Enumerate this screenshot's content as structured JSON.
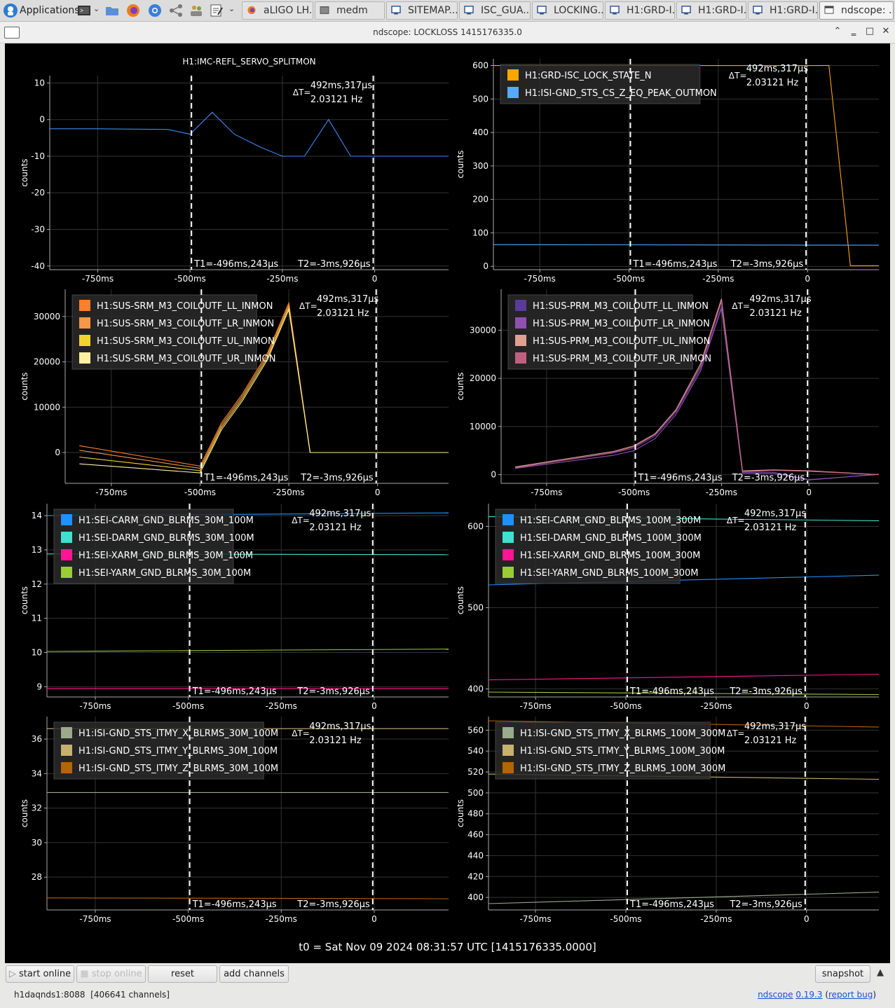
{
  "taskbar": {
    "applications_label": "Applications",
    "tasks": [
      {
        "label": "aLIGO LH...",
        "icon": "firefox-icon"
      },
      {
        "label": "medm",
        "icon": "terminal-icon"
      },
      {
        "label": "SITEMAP....",
        "icon": "window-icon"
      },
      {
        "label": "ISC_GUA...",
        "icon": "window-icon"
      },
      {
        "label": "LOCKING....",
        "icon": "window-icon"
      },
      {
        "label": "H1:GRD-I...",
        "icon": "window-icon"
      },
      {
        "label": "H1:GRD-I...",
        "icon": "window-icon"
      },
      {
        "label": "H1:GRD-I...",
        "icon": "window-icon"
      },
      {
        "label": "ndscope: ...",
        "icon": "window-icon"
      }
    ]
  },
  "window": {
    "title": "ndscope: LOCKLOSS 1415176335.0"
  },
  "cursors": {
    "delta_t": "ΔT=",
    "delta_value": "492ms,317μs",
    "delta_freq": "2.03121 Hz",
    "t1_label": "T1=-496ms,243μs",
    "t2_label": "T2=-3ms,926μs",
    "t1": -0.496243,
    "t2": -0.003926
  },
  "x_axis": {
    "ticks": [
      -0.75,
      -0.5,
      -0.25,
      0
    ],
    "tick_labels": [
      "-750ms",
      "-500ms",
      "-250ms",
      "0"
    ],
    "range": [
      -0.88,
      0.2
    ]
  },
  "colors": {
    "background": "#000000",
    "grid": "#333333",
    "cursor": "#ffffff"
  },
  "plots": [
    {
      "id": "imc",
      "title": "H1:IMC-REFL_SERVO_SPLITMON",
      "ylabel": "counts",
      "yrange": [
        -41,
        12
      ],
      "yticks": [
        10,
        0,
        -10,
        -20,
        -30,
        -40
      ],
      "ytick_labels": [
        "10",
        "0",
        "-10",
        "-20",
        "-30",
        "-40"
      ],
      "legend": [],
      "series": [
        {
          "name": "H1:IMC-REFL_SERVO_SPLITMON",
          "color": "#3c8cf0",
          "x": [
            -0.88,
            -0.75,
            -0.56,
            -0.5,
            -0.44,
            -0.38,
            -0.31,
            -0.25,
            -0.19,
            -0.125,
            -0.065,
            0.0,
            0.2
          ],
          "y": [
            -2.5,
            -2.5,
            -2.7,
            -4,
            2,
            -4,
            -7.5,
            -10,
            -10,
            0,
            -10,
            -10,
            -10
          ]
        }
      ]
    },
    {
      "id": "grd",
      "title": "",
      "ylabel": "counts",
      "yrange": [
        -10,
        620
      ],
      "yticks": [
        600,
        500,
        400,
        300,
        200,
        100,
        0
      ],
      "ytick_labels": [
        "600",
        "500",
        "400",
        "300",
        "200",
        "100",
        "0"
      ],
      "legend": [
        {
          "name": "H1:GRD-ISC_LOCK_STATE_N",
          "color": "#ffa500"
        },
        {
          "name": "H1:ISI-GND_STS_CS_Z_EQ_PEAK_OUTMON",
          "color": "#55aaff"
        }
      ],
      "series": [
        {
          "name": "H1:GRD-ISC_LOCK_STATE_N",
          "color": "#ffa500",
          "x": [
            -0.88,
            0.06,
            0.12,
            0.2
          ],
          "y": [
            600,
            600,
            2,
            2
          ]
        },
        {
          "name": "H1:ISI-GND_STS_CS_Z_EQ_PEAK_OUTMON",
          "color": "#55aaff",
          "x": [
            -0.88,
            0.2
          ],
          "y": [
            65,
            63
          ]
        }
      ]
    },
    {
      "id": "srm",
      "title": "",
      "ylabel": "counts",
      "yrange": [
        -6800,
        36000
      ],
      "yticks": [
        30000,
        20000,
        10000,
        0
      ],
      "ytick_labels": [
        "30000",
        "20000",
        "10000",
        "0"
      ],
      "legend": [
        {
          "name": "H1:SUS-SRM_M3_COILOUTF_LL_INMON",
          "color": "#ff7f2a"
        },
        {
          "name": "H1:SUS-SRM_M3_COILOUTF_LR_INMON",
          "color": "#f4974a"
        },
        {
          "name": "H1:SUS-SRM_M3_COILOUTF_UL_INMON",
          "color": "#f0d42a"
        },
        {
          "name": "H1:SUS-SRM_M3_COILOUTF_UR_INMON",
          "color": "#fff0a0"
        }
      ],
      "series": [
        {
          "name": "H1:SUS-SRM_M3_COILOUTF_LL_INMON",
          "color": "#ff7f2a",
          "x": [
            -0.84,
            -0.5,
            -0.44,
            -0.38,
            -0.31,
            -0.25,
            -0.19,
            0.2
          ],
          "y": [
            1500,
            -3000,
            6500,
            13000,
            22000,
            33000,
            0,
            0
          ]
        },
        {
          "name": "H1:SUS-SRM_M3_COILOUTF_LR_INMON",
          "color": "#f4974a",
          "x": [
            -0.84,
            -0.5,
            -0.44,
            -0.38,
            -0.31,
            -0.25,
            -0.19,
            0.2
          ],
          "y": [
            500,
            -3500,
            6000,
            12500,
            21500,
            32500,
            0,
            0
          ]
        },
        {
          "name": "H1:SUS-SRM_M3_COILOUTF_UL_INMON",
          "color": "#f0d42a",
          "x": [
            -0.84,
            -0.5,
            -0.44,
            -0.38,
            -0.31,
            -0.25,
            -0.19,
            0.2
          ],
          "y": [
            -1000,
            -4000,
            5500,
            12000,
            21000,
            32000,
            0,
            0
          ]
        },
        {
          "name": "H1:SUS-SRM_M3_COILOUTF_UR_INMON",
          "color": "#fff0a0",
          "x": [
            -0.84,
            -0.5,
            -0.44,
            -0.38,
            -0.31,
            -0.25,
            -0.19,
            0.2
          ],
          "y": [
            -2500,
            -4500,
            5000,
            11500,
            20500,
            31500,
            0,
            0
          ]
        }
      ]
    },
    {
      "id": "prm",
      "title": "",
      "ylabel": "counts",
      "yrange": [
        -1800,
        38500
      ],
      "yticks": [
        30000,
        20000,
        10000,
        0
      ],
      "ytick_labels": [
        "30000",
        "20000",
        "10000",
        "0"
      ],
      "legend": [
        {
          "name": "H1:SUS-PRM_M3_COILOUTF_LL_INMON",
          "color": "#5b3a9a"
        },
        {
          "name": "H1:SUS-PRM_M3_COILOUTF_LR_INMON",
          "color": "#9050b0"
        },
        {
          "name": "H1:SUS-PRM_M3_COILOUTF_UL_INMON",
          "color": "#e0a090"
        },
        {
          "name": "H1:SUS-PRM_M3_COILOUTF_UR_INMON",
          "color": "#c06080"
        }
      ],
      "series": [
        {
          "name": "H1:SUS-PRM_M3_COILOUTF_LL_INMON",
          "color": "#5b3a9a",
          "x": [
            -0.84,
            -0.56,
            -0.5,
            -0.44,
            -0.38,
            -0.31,
            -0.25,
            -0.19,
            -0.1,
            0.0,
            0.2
          ],
          "y": [
            1500,
            4500,
            5500,
            8000,
            13000,
            22000,
            35000,
            500,
            500,
            -1000,
            0
          ]
        },
        {
          "name": "H1:SUS-PRM_M3_COILOUTF_LR_INMON",
          "color": "#9050b0",
          "x": [
            -0.84,
            -0.56,
            -0.5,
            -0.44,
            -0.38,
            -0.31,
            -0.25,
            -0.19,
            -0.1,
            0.0,
            0.2
          ],
          "y": [
            1300,
            4000,
            5000,
            7500,
            12500,
            21500,
            34500,
            300,
            300,
            -1100,
            100
          ]
        },
        {
          "name": "H1:SUS-PRM_M3_COILOUTF_UL_INMON",
          "color": "#e0a090",
          "x": [
            -0.84,
            -0.56,
            -0.5,
            -0.44,
            -0.38,
            -0.31,
            -0.25,
            -0.19,
            -0.1,
            0.0,
            0.2
          ],
          "y": [
            1600,
            4800,
            6000,
            8500,
            13500,
            23000,
            36500,
            800,
            1000,
            800,
            0
          ]
        },
        {
          "name": "H1:SUS-PRM_M3_COILOUTF_UR_INMON",
          "color": "#c06080",
          "x": [
            -0.84,
            -0.56,
            -0.5,
            -0.44,
            -0.38,
            -0.31,
            -0.25,
            -0.19,
            -0.1,
            0.0,
            0.2
          ],
          "y": [
            1400,
            4600,
            5800,
            8300,
            13300,
            22500,
            36000,
            600,
            900,
            700,
            0
          ]
        }
      ]
    },
    {
      "id": "blrms30",
      "title": "",
      "ylabel": "counts",
      "yrange": [
        8.7,
        14.35
      ],
      "yticks": [
        14,
        13,
        12,
        11,
        10,
        9
      ],
      "ytick_labels": [
        "14",
        "13",
        "12",
        "11",
        "10",
        "9"
      ],
      "legend": [
        {
          "name": "H1:SEI-CARM_GND_BLRMS_30M_100M",
          "color": "#1e90ff"
        },
        {
          "name": "H1:SEI-DARM_GND_BLRMS_30M_100M",
          "color": "#40e0d0"
        },
        {
          "name": "H1:SEI-XARM_GND_BLRMS_30M_100M",
          "color": "#ff1493"
        },
        {
          "name": "H1:SEI-YARM_GND_BLRMS_30M_100M",
          "color": "#9acd32"
        }
      ],
      "series": [
        {
          "name": "H1:SEI-CARM_GND_BLRMS_30M_100M",
          "color": "#1e90ff",
          "x": [
            -0.88,
            0.2
          ],
          "y": [
            14.0,
            14.08
          ]
        },
        {
          "name": "H1:SEI-DARM_GND_BLRMS_30M_100M",
          "color": "#40e0d0",
          "x": [
            -0.88,
            0.2
          ],
          "y": [
            12.88,
            12.86
          ]
        },
        {
          "name": "H1:SEI-XARM_GND_BLRMS_30M_100M",
          "color": "#ff1493",
          "x": [
            -0.88,
            0.2
          ],
          "y": [
            8.95,
            8.95
          ]
        },
        {
          "name": "H1:SEI-YARM_GND_BLRMS_30M_100M",
          "color": "#9acd32",
          "x": [
            -0.88,
            0.2
          ],
          "y": [
            10.03,
            10.1
          ]
        }
      ]
    },
    {
      "id": "blrms100",
      "title": "",
      "ylabel": "counts",
      "yrange": [
        390,
        628
      ],
      "yticks": [
        600,
        500,
        400
      ],
      "ytick_labels": [
        "600",
        "500",
        "400"
      ],
      "legend": [
        {
          "name": "H1:SEI-CARM_GND_BLRMS_100M_300M",
          "color": "#1e90ff"
        },
        {
          "name": "H1:SEI-DARM_GND_BLRMS_100M_300M",
          "color": "#40e0d0"
        },
        {
          "name": "H1:SEI-XARM_GND_BLRMS_100M_300M",
          "color": "#ff1493"
        },
        {
          "name": "H1:SEI-YARM_GND_BLRMS_100M_300M",
          "color": "#9acd32"
        }
      ],
      "series": [
        {
          "name": "H1:SEI-CARM_GND_BLRMS_100M_300M",
          "color": "#1e90ff",
          "x": [
            -0.88,
            0.2
          ],
          "y": [
            528,
            540
          ]
        },
        {
          "name": "H1:SEI-DARM_GND_BLRMS_100M_300M",
          "color": "#40e0d0",
          "x": [
            -0.88,
            0.2
          ],
          "y": [
            612,
            607
          ]
        },
        {
          "name": "H1:SEI-XARM_GND_BLRMS_100M_300M",
          "color": "#ff1493",
          "x": [
            -0.88,
            0.2
          ],
          "y": [
            411,
            418
          ]
        },
        {
          "name": "H1:SEI-YARM_GND_BLRMS_100M_300M",
          "color": "#9acd32",
          "x": [
            -0.88,
            0.2
          ],
          "y": [
            396,
            393
          ]
        }
      ]
    },
    {
      "id": "itmy30",
      "title": "",
      "ylabel": "counts",
      "yrange": [
        26.1,
        37.3
      ],
      "yticks": [
        36,
        34,
        32,
        30,
        28
      ],
      "ytick_labels": [
        "36",
        "34",
        "32",
        "30",
        "28"
      ],
      "legend": [
        {
          "name": "H1:ISI-GND_STS_ITMY_X_BLRMS_30M_100M",
          "color": "#9aaa8a"
        },
        {
          "name": "H1:ISI-GND_STS_ITMY_Y_BLRMS_30M_100M",
          "color": "#c8b070"
        },
        {
          "name": "H1:ISI-GND_STS_ITMY_Z_BLRMS_30M_100M",
          "color": "#b8620a"
        }
      ],
      "series": [
        {
          "name": "H1:ISI-GND_STS_ITMY_X_BLRMS_30M_100M",
          "color": "#9aaa8a",
          "x": [
            -0.88,
            0.2
          ],
          "y": [
            32.9,
            32.9
          ]
        },
        {
          "name": "H1:ISI-GND_STS_ITMY_Y_BLRMS_30M_100M",
          "color": "#c8b070",
          "x": [
            -0.88,
            0.2
          ],
          "y": [
            36.6,
            36.6
          ]
        },
        {
          "name": "H1:ISI-GND_STS_ITMY_Z_BLRMS_30M_100M",
          "color": "#b8620a",
          "x": [
            -0.88,
            0.2
          ],
          "y": [
            26.8,
            26.75
          ]
        }
      ]
    },
    {
      "id": "itmy100",
      "title": "",
      "ylabel": "counts",
      "yrange": [
        388,
        573
      ],
      "yticks": [
        560,
        540,
        520,
        500,
        480,
        460,
        440,
        420,
        400
      ],
      "ytick_labels": [
        "560",
        "540",
        "520",
        "500",
        "480",
        "460",
        "440",
        "420",
        "400"
      ],
      "legend": [
        {
          "name": "H1:ISI-GND_STS_ITMY_X_BLRMS_100M_300M",
          "color": "#9aaa8a"
        },
        {
          "name": "H1:ISI-GND_STS_ITMY_Y_BLRMS_100M_300M",
          "color": "#c8b070"
        },
        {
          "name": "H1:ISI-GND_STS_ITMY_Z_BLRMS_100M_300M",
          "color": "#b8620a"
        }
      ],
      "series": [
        {
          "name": "H1:ISI-GND_STS_ITMY_X_BLRMS_100M_300M",
          "color": "#9aaa8a",
          "x": [
            -0.88,
            0.2
          ],
          "y": [
            394,
            405
          ]
        },
        {
          "name": "H1:ISI-GND_STS_ITMY_Y_BLRMS_100M_300M",
          "color": "#c8b070",
          "x": [
            -0.88,
            0.2
          ],
          "y": [
            518,
            513
          ]
        },
        {
          "name": "H1:ISI-GND_STS_ITMY_Z_BLRMS_100M_300M",
          "color": "#b8620a",
          "x": [
            -0.88,
            0.2
          ],
          "y": [
            569,
            563
          ]
        }
      ]
    }
  ],
  "t0_label": "t0 = Sat Nov 09 2024 08:31:57 UTC [1415176335.0000]",
  "controls": {
    "start_online": "start online",
    "stop_online": "stop online",
    "reset": "reset",
    "add_channels": "add channels",
    "snapshot": "snapshot"
  },
  "status": {
    "server": "h1daqnds1:8088",
    "channels": "[406641 channels]",
    "app_name": "ndscope",
    "version": "0.19.3",
    "report_bug": "report bug"
  }
}
